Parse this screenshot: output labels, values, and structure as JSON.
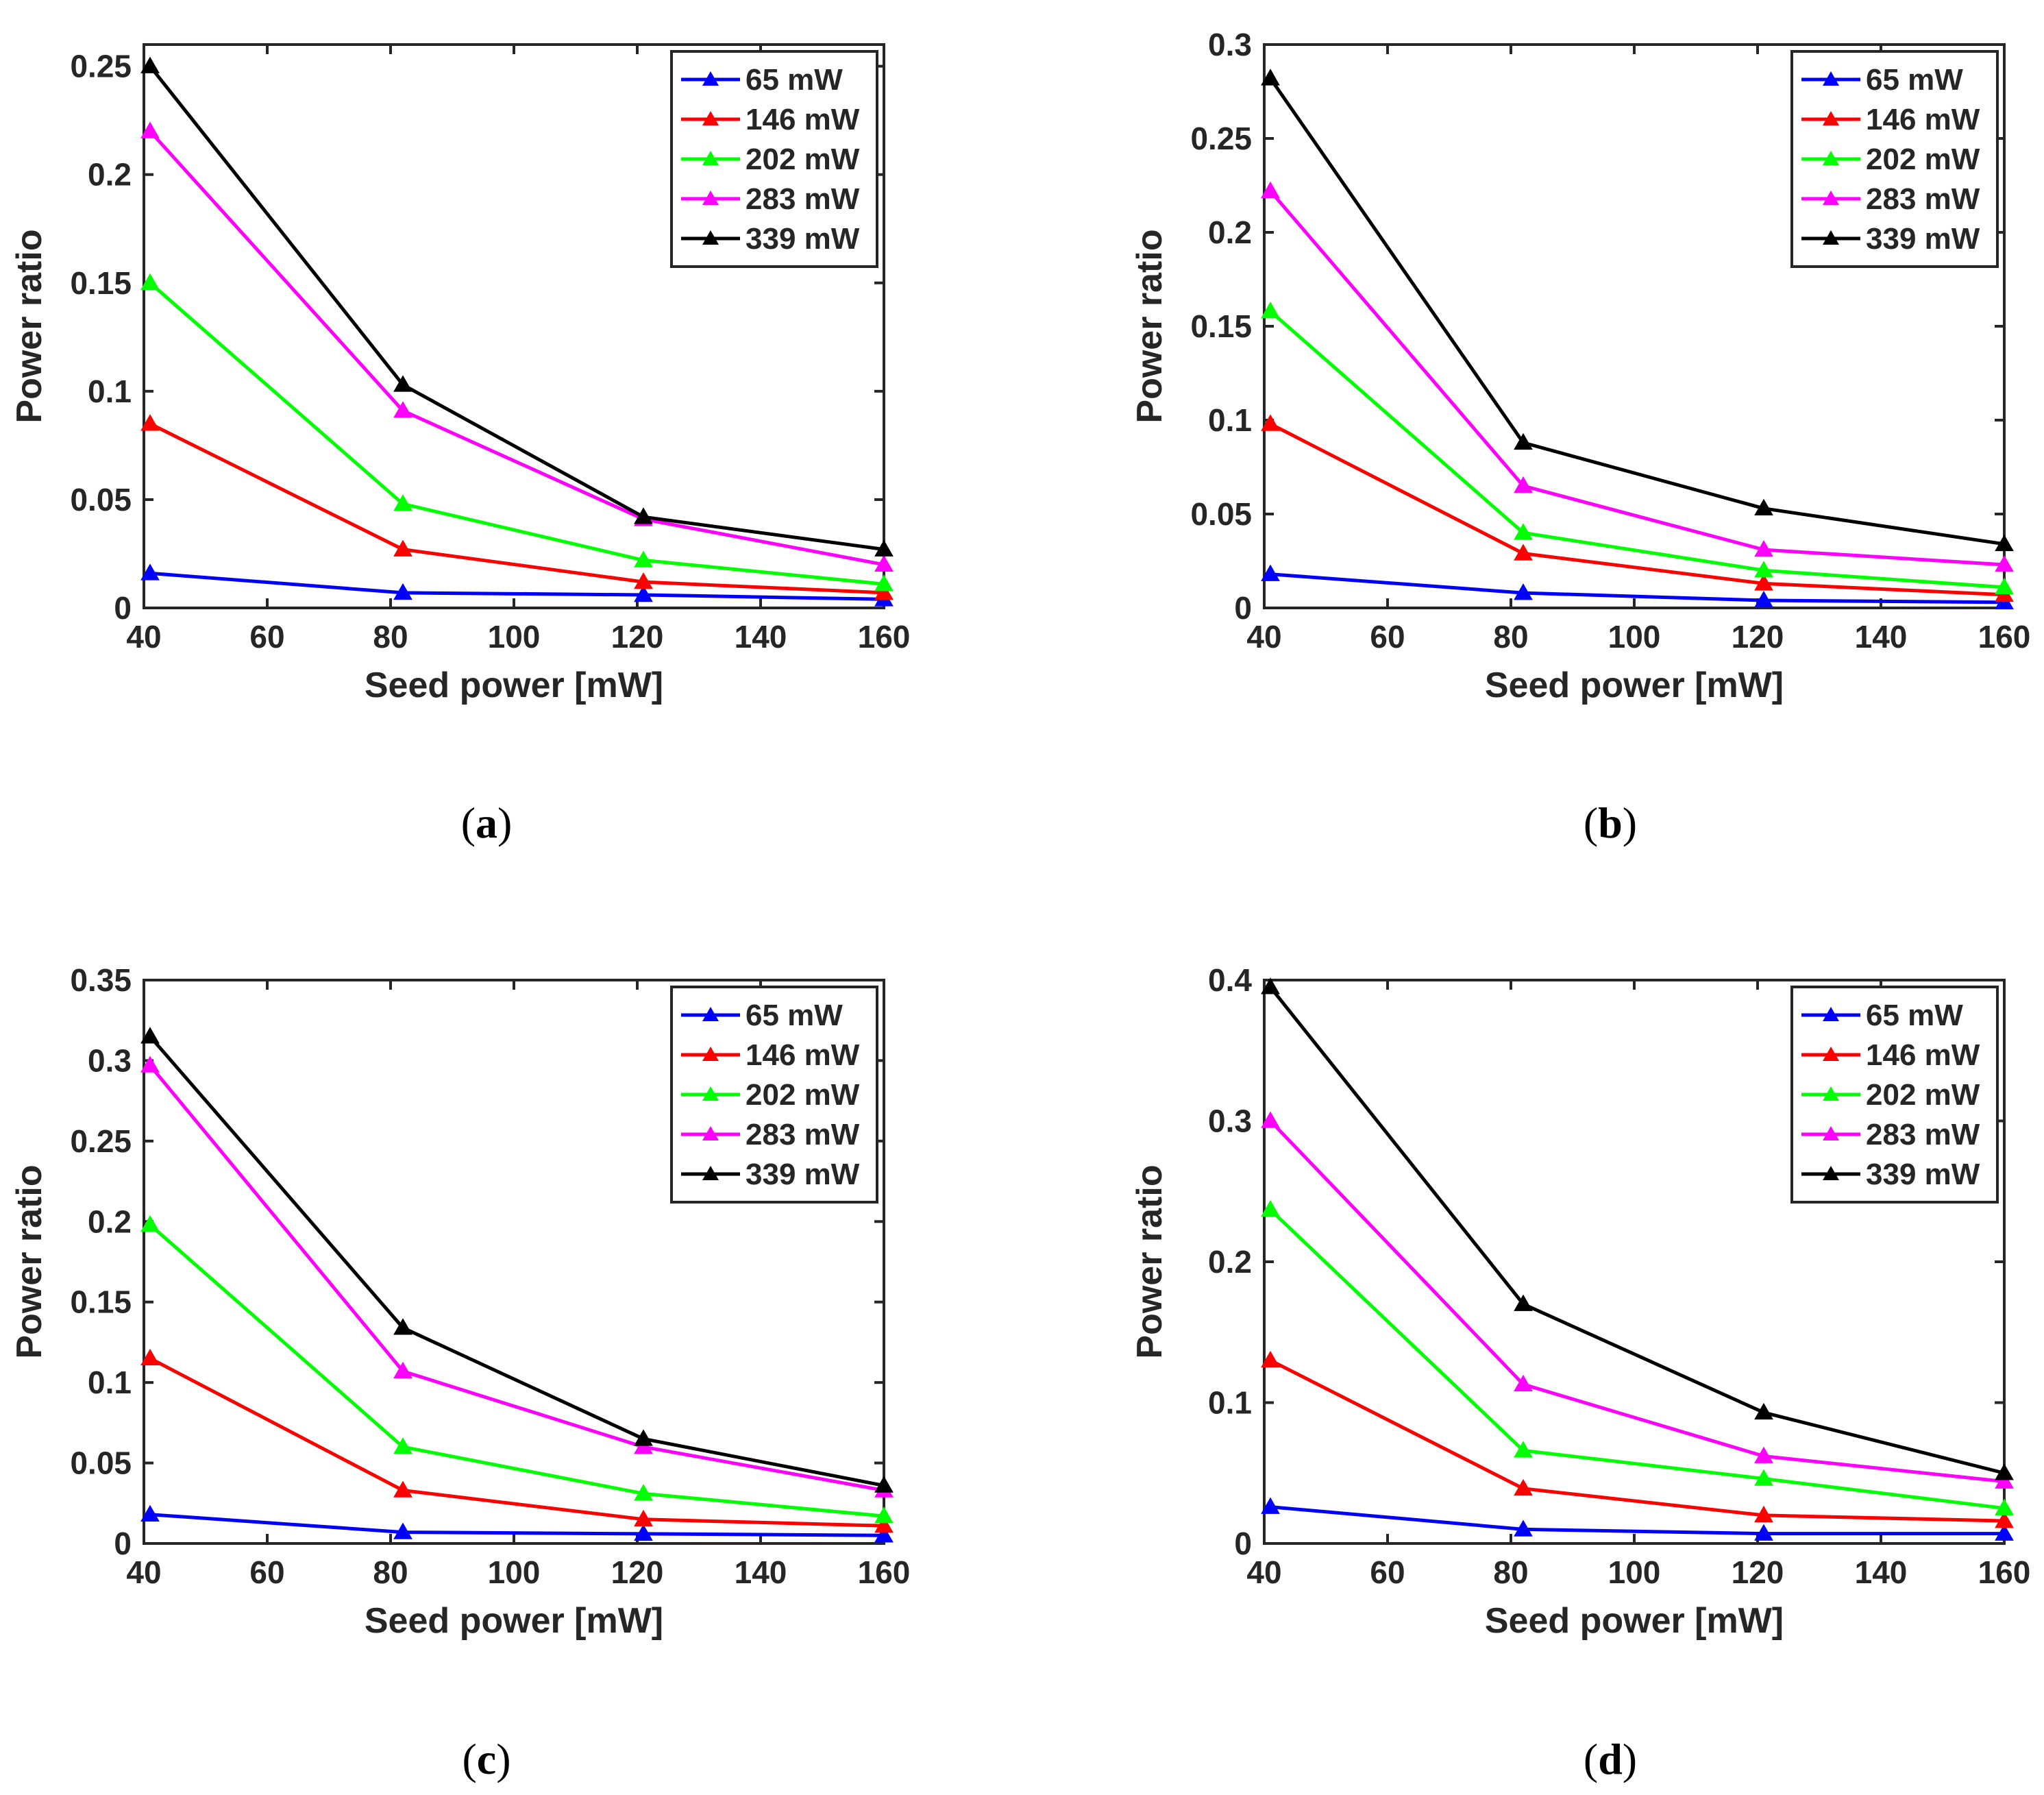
{
  "chart_data": [
    {
      "type": "line",
      "caption": "a",
      "xlabel": "Seed power [mW]",
      "ylabel": "Power ratio",
      "xlim": [
        40,
        160
      ],
      "ylim": [
        0,
        0.26
      ],
      "xticks": [
        40,
        60,
        80,
        100,
        120,
        140,
        160
      ],
      "xtick_labels": [
        "40",
        "60",
        "80",
        "100",
        "120",
        "140",
        "160"
      ],
      "yticks": [
        0,
        0.05,
        0.1,
        0.15,
        0.2,
        0.25
      ],
      "ytick_labels": [
        "0",
        "0.05",
        "0.1",
        "0.15",
        "0.2",
        "0.25"
      ],
      "legend_position": "top-right",
      "x": [
        41,
        82,
        121,
        160
      ],
      "series": [
        {
          "name": "65 mW",
          "color": "#0000ff",
          "values": [
            0.016,
            0.007,
            0.006,
            0.004
          ]
        },
        {
          "name": "146 mW",
          "color": "#ff0000",
          "values": [
            0.085,
            0.027,
            0.012,
            0.007
          ]
        },
        {
          "name": "202 mW",
          "color": "#00ff00",
          "values": [
            0.15,
            0.048,
            0.022,
            0.011
          ]
        },
        {
          "name": "283 mW",
          "color": "#ff00ff",
          "values": [
            0.22,
            0.091,
            0.041,
            0.02
          ]
        },
        {
          "name": "339 mW",
          "color": "#000000",
          "values": [
            0.25,
            0.103,
            0.042,
            0.027
          ]
        }
      ]
    },
    {
      "type": "line",
      "caption": "b",
      "xlabel": "Seed power [mW]",
      "ylabel": "Power ratio",
      "xlim": [
        40,
        160
      ],
      "ylim": [
        0,
        0.3
      ],
      "xticks": [
        40,
        60,
        80,
        100,
        120,
        140,
        160
      ],
      "xtick_labels": [
        "40",
        "60",
        "80",
        "100",
        "120",
        "140",
        "160"
      ],
      "yticks": [
        0,
        0.05,
        0.1,
        0.15,
        0.2,
        0.25,
        0.3
      ],
      "ytick_labels": [
        "0",
        "0.05",
        "0.1",
        "0.15",
        "0.2",
        "0.25",
        "0.3"
      ],
      "legend_position": "top-right",
      "x": [
        41,
        82,
        121,
        160
      ],
      "series": [
        {
          "name": "65 mW",
          "color": "#0000ff",
          "values": [
            0.018,
            0.008,
            0.004,
            0.003
          ]
        },
        {
          "name": "146 mW",
          "color": "#ff0000",
          "values": [
            0.098,
            0.029,
            0.013,
            0.007
          ]
        },
        {
          "name": "202 mW",
          "color": "#00ff00",
          "values": [
            0.158,
            0.04,
            0.02,
            0.011
          ]
        },
        {
          "name": "283 mW",
          "color": "#ff00ff",
          "values": [
            0.222,
            0.065,
            0.031,
            0.023
          ]
        },
        {
          "name": "339 mW",
          "color": "#000000",
          "values": [
            0.282,
            0.088,
            0.053,
            0.034
          ]
        }
      ]
    },
    {
      "type": "line",
      "caption": "c",
      "xlabel": "Seed power [mW]",
      "ylabel": "Power ratio",
      "xlim": [
        40,
        160
      ],
      "ylim": [
        0,
        0.35
      ],
      "xticks": [
        40,
        60,
        80,
        100,
        120,
        140,
        160
      ],
      "xtick_labels": [
        "40",
        "60",
        "80",
        "100",
        "120",
        "140",
        "160"
      ],
      "yticks": [
        0,
        0.05,
        0.1,
        0.15,
        0.2,
        0.25,
        0.3,
        0.35
      ],
      "ytick_labels": [
        "0",
        "0.05",
        "0.1",
        "0.15",
        "0.2",
        "0.25",
        "0.3",
        "0.35"
      ],
      "legend_position": "top-right",
      "x": [
        41,
        82,
        121,
        160
      ],
      "series": [
        {
          "name": "65 mW",
          "color": "#0000ff",
          "values": [
            0.018,
            0.007,
            0.006,
            0.005
          ]
        },
        {
          "name": "146 mW",
          "color": "#ff0000",
          "values": [
            0.115,
            0.033,
            0.015,
            0.011
          ]
        },
        {
          "name": "202 mW",
          "color": "#00ff00",
          "values": [
            0.198,
            0.06,
            0.031,
            0.017
          ]
        },
        {
          "name": "283 mW",
          "color": "#ff00ff",
          "values": [
            0.297,
            0.107,
            0.06,
            0.033
          ]
        },
        {
          "name": "339 mW",
          "color": "#000000",
          "values": [
            0.315,
            0.134,
            0.065,
            0.036
          ]
        }
      ]
    },
    {
      "type": "line",
      "caption": "d",
      "xlabel": "Seed power [mW]",
      "ylabel": "Power ratio",
      "xlim": [
        40,
        160
      ],
      "ylim": [
        0,
        0.4
      ],
      "xticks": [
        40,
        60,
        80,
        100,
        120,
        140,
        160
      ],
      "xtick_labels": [
        "40",
        "60",
        "80",
        "100",
        "120",
        "140",
        "160"
      ],
      "yticks": [
        0,
        0.1,
        0.2,
        0.3,
        0.4
      ],
      "ytick_labels": [
        "0",
        "0.1",
        "0.2",
        "0.3",
        "0.4"
      ],
      "legend_position": "top-right",
      "x": [
        41,
        82,
        121,
        160
      ],
      "series": [
        {
          "name": "65 mW",
          "color": "#0000ff",
          "values": [
            0.026,
            0.01,
            0.007,
            0.007
          ]
        },
        {
          "name": "146 mW",
          "color": "#ff0000",
          "values": [
            0.13,
            0.039,
            0.02,
            0.016
          ]
        },
        {
          "name": "202 mW",
          "color": "#00ff00",
          "values": [
            0.237,
            0.066,
            0.046,
            0.025
          ]
        },
        {
          "name": "283 mW",
          "color": "#ff00ff",
          "values": [
            0.3,
            0.113,
            0.062,
            0.044
          ]
        },
        {
          "name": "339 mW",
          "color": "#000000",
          "values": [
            0.395,
            0.17,
            0.093,
            0.05
          ]
        }
      ]
    }
  ]
}
